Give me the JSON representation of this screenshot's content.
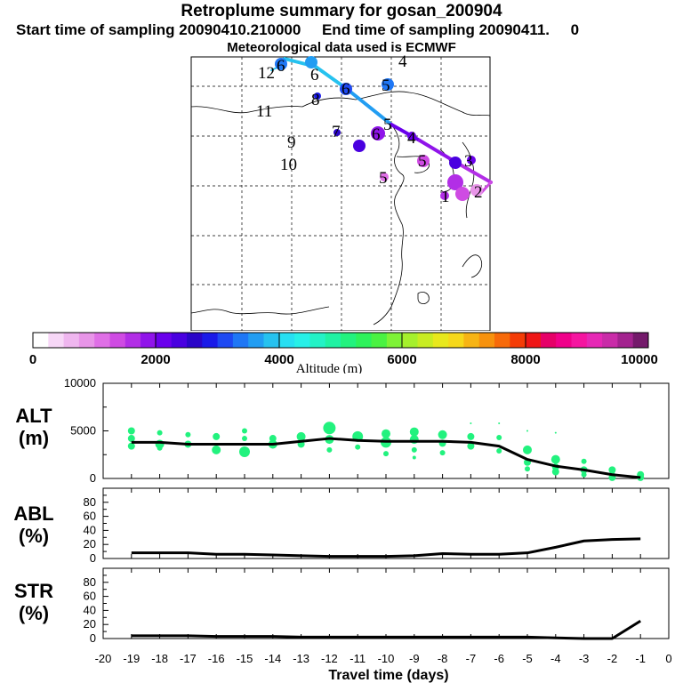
{
  "header": {
    "title": "Retroplume summary for gosan_200904",
    "start_label": "Start time of sampling 20090410.210000",
    "end_label": "End time of sampling 20090411.",
    "end_tail": "0",
    "met_label": "Meteorological data used is ECMWF"
  },
  "colorbar": {
    "ticks": [
      "0",
      "2000",
      "4000",
      "6000",
      "8000",
      "10000"
    ],
    "label": "Altitude (m)",
    "colors": [
      "#ffffff",
      "#f7d7f7",
      "#efb6ef",
      "#e895e8",
      "#df6fe6",
      "#cf4be3",
      "#b22ee6",
      "#9014ea",
      "#6a00ec",
      "#4900e0",
      "#2a05c8",
      "#1a1ae8",
      "#1e49f2",
      "#1f77f5",
      "#229df2",
      "#26c2ef",
      "#27dff2",
      "#27f0e8",
      "#23f2c6",
      "#1ff2a3",
      "#22f27e",
      "#2df25b",
      "#4af242",
      "#7ef236",
      "#a5f02c",
      "#c8ec22",
      "#e8e81c",
      "#f6d81a",
      "#f7b414",
      "#f7920e",
      "#f76a0a",
      "#f43c06",
      "#ef1616",
      "#e60068",
      "#f0008a",
      "#f515a0",
      "#e628b5",
      "#c92ca8",
      "#a3238f",
      "#741a6b"
    ]
  },
  "map": {
    "labels": [
      "12",
      "6",
      "6",
      "4",
      "6",
      "8",
      "5",
      "11",
      "7",
      "6",
      "5",
      "4",
      "9",
      "5",
      "3",
      "10",
      "5",
      "1",
      "2"
    ]
  },
  "chart_data": [
    {
      "type": "line",
      "title": "ALT",
      "ylabel": "(m)",
      "ylim": [
        0,
        10000
      ],
      "yticks": [
        "10000",
        "5000",
        "0"
      ],
      "x": [
        -19,
        -18,
        -17,
        -16,
        -15,
        -14,
        -13,
        -12,
        -11,
        -10,
        -9,
        -8,
        -7,
        -6,
        -5,
        -4,
        -3,
        -2,
        -1
      ],
      "series": [
        {
          "name": "mean altitude",
          "color": "#000000",
          "values": [
            3800,
            3800,
            3600,
            3600,
            3600,
            3600,
            3900,
            4200,
            4000,
            3900,
            3900,
            3900,
            3800,
            3400,
            2000,
            1300,
            900,
            400,
            100
          ]
        },
        {
          "name": "particle altitudes",
          "color": "#22f27e",
          "type": "scatter",
          "points": [
            [
              -19,
              5000,
              4
            ],
            [
              -19,
              4200,
              4
            ],
            [
              -19,
              3400,
              4
            ],
            [
              -18,
              4800,
              3
            ],
            [
              -18,
              3600,
              5
            ],
            [
              -18,
              3200,
              3
            ],
            [
              -17,
              4600,
              3
            ],
            [
              -17,
              3600,
              4
            ],
            [
              -16,
              4400,
              4
            ],
            [
              -16,
              3000,
              5
            ],
            [
              -15,
              5000,
              3
            ],
            [
              -15,
              4200,
              3
            ],
            [
              -15,
              2800,
              6
            ],
            [
              -14,
              4200,
              4
            ],
            [
              -14,
              3600,
              5
            ],
            [
              -13,
              4400,
              5
            ],
            [
              -13,
              3600,
              4
            ],
            [
              -12,
              5300,
              7
            ],
            [
              -12,
              4100,
              5
            ],
            [
              -12,
              3000,
              3
            ],
            [
              -11,
              4400,
              6
            ],
            [
              -11,
              3300,
              3
            ],
            [
              -10,
              4700,
              5
            ],
            [
              -10,
              3800,
              6
            ],
            [
              -10,
              2600,
              3
            ],
            [
              -9,
              4900,
              5
            ],
            [
              -9,
              4100,
              5
            ],
            [
              -9,
              3000,
              3
            ],
            [
              -9,
              2200,
              2
            ],
            [
              -8,
              4600,
              5
            ],
            [
              -8,
              3700,
              4
            ],
            [
              -8,
              2700,
              3
            ],
            [
              -7,
              4400,
              4
            ],
            [
              -7,
              3400,
              4
            ],
            [
              -6,
              4300,
              3
            ],
            [
              -6,
              2900,
              3
            ],
            [
              -5,
              3000,
              5
            ],
            [
              -5,
              1700,
              4
            ],
            [
              -5,
              1000,
              3
            ],
            [
              -4,
              2000,
              5
            ],
            [
              -4,
              1200,
              4
            ],
            [
              -4,
              700,
              4
            ],
            [
              -3,
              1800,
              3
            ],
            [
              -3,
              900,
              4
            ],
            [
              -3,
              400,
              3
            ],
            [
              -2,
              900,
              4
            ],
            [
              -2,
              500,
              3
            ],
            [
              -2,
              100,
              4
            ],
            [
              -1,
              400,
              4
            ],
            [
              -1,
              100,
              4
            ],
            [
              -7,
              5800,
              1
            ],
            [
              -6,
              5800,
              1
            ],
            [
              -5,
              5000,
              1
            ],
            [
              -4,
              4800,
              1
            ]
          ]
        }
      ]
    },
    {
      "type": "line",
      "title": "ABL",
      "ylabel": "(%)",
      "ylim": [
        0,
        100
      ],
      "yticks": [
        "80",
        "60",
        "40",
        "20",
        "0"
      ],
      "x": [
        -19,
        -18,
        -17,
        -16,
        -15,
        -14,
        -13,
        -12,
        -11,
        -10,
        -9,
        -8,
        -7,
        -6,
        -5,
        -4,
        -3,
        -2,
        -1
      ],
      "series": [
        {
          "name": "ABL",
          "color": "#000000",
          "values": [
            8,
            8,
            8,
            6,
            6,
            5,
            4,
            3,
            3,
            3,
            4,
            7,
            6,
            6,
            8,
            16,
            25,
            27,
            28
          ]
        }
      ]
    },
    {
      "type": "line",
      "title": "STR",
      "ylabel": "(%)",
      "ylim": [
        0,
        100
      ],
      "yticks": [
        "80",
        "60",
        "40",
        "20",
        "0"
      ],
      "xlabel": "Travel time (days)",
      "x": [
        -19,
        -18,
        -17,
        -16,
        -15,
        -14,
        -13,
        -12,
        -11,
        -10,
        -9,
        -8,
        -7,
        -6,
        -5,
        -4,
        -3,
        -2,
        -1
      ],
      "xticks": [
        "-20",
        "-19",
        "-18",
        "-17",
        "-16",
        "-15",
        "-14",
        "-13",
        "-12",
        "-11",
        "-10",
        "-9",
        "-8",
        "-7",
        "-6",
        "-5",
        "-4",
        "-3",
        "-2",
        "-1",
        "0"
      ],
      "series": [
        {
          "name": "STR",
          "color": "#000000",
          "values": [
            4,
            4,
            4,
            3,
            3,
            3,
            2,
            2,
            2,
            2,
            2,
            2,
            2,
            2,
            2,
            1,
            0,
            0,
            25
          ]
        }
      ]
    }
  ]
}
